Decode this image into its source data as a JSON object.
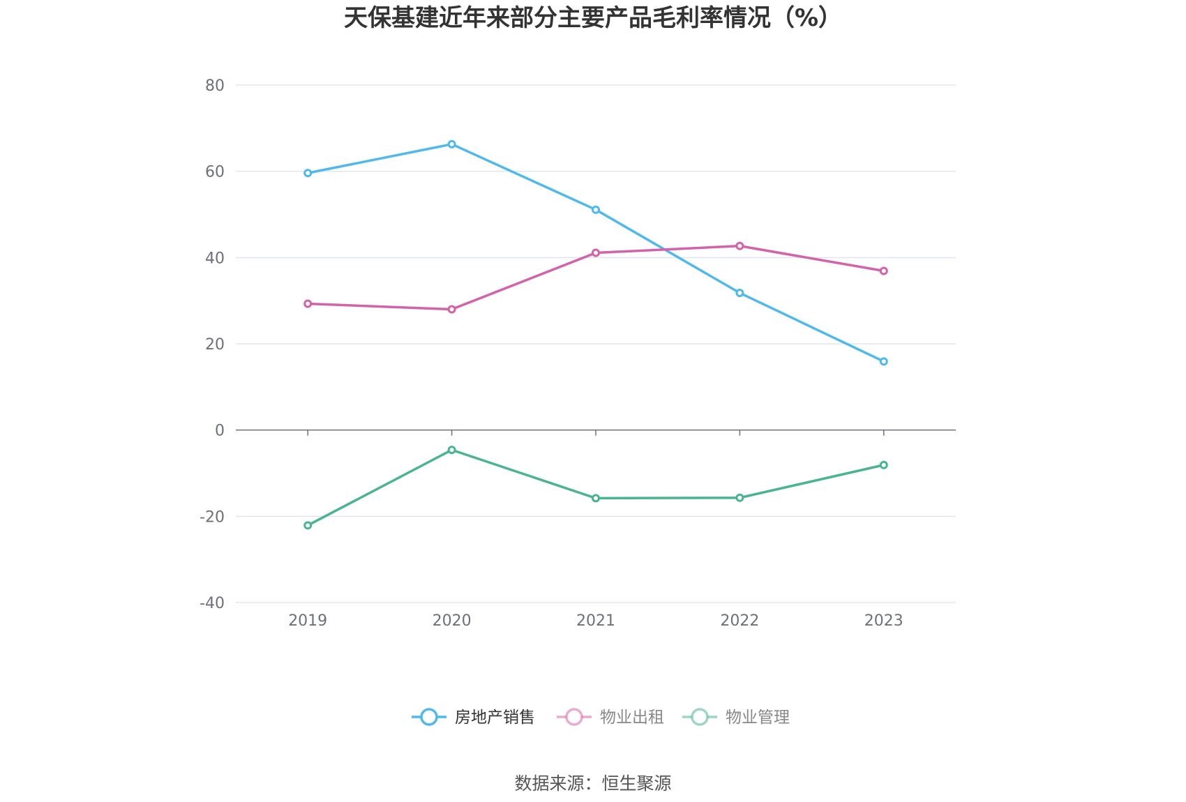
{
  "chart_data": {
    "type": "line",
    "title": "天保基建近年来部分主要产品毛利率情况（%）",
    "xlabel": "",
    "ylabel": "",
    "categories": [
      "2019",
      "2020",
      "2021",
      "2022",
      "2023"
    ],
    "ylim": [
      -40,
      80
    ],
    "yticks": [
      80,
      60,
      40,
      20,
      0,
      -20,
      -40
    ],
    "grid": true,
    "legend_position": "bottom",
    "series": [
      {
        "name": "房地产销售",
        "color": "#4fb9ec",
        "values": [
          59.6,
          66.3,
          51.1,
          31.8,
          15.9
        ]
      },
      {
        "name": "物业出租",
        "color": "#d362a9",
        "values": [
          29.3,
          28.0,
          41.1,
          42.7,
          36.9
        ]
      },
      {
        "name": "物业管理",
        "color": "#48b491",
        "values": [
          -22.1,
          -4.6,
          -15.8,
          -15.7,
          -8.1
        ]
      }
    ]
  },
  "source_text": "数据来源：恒生聚源"
}
